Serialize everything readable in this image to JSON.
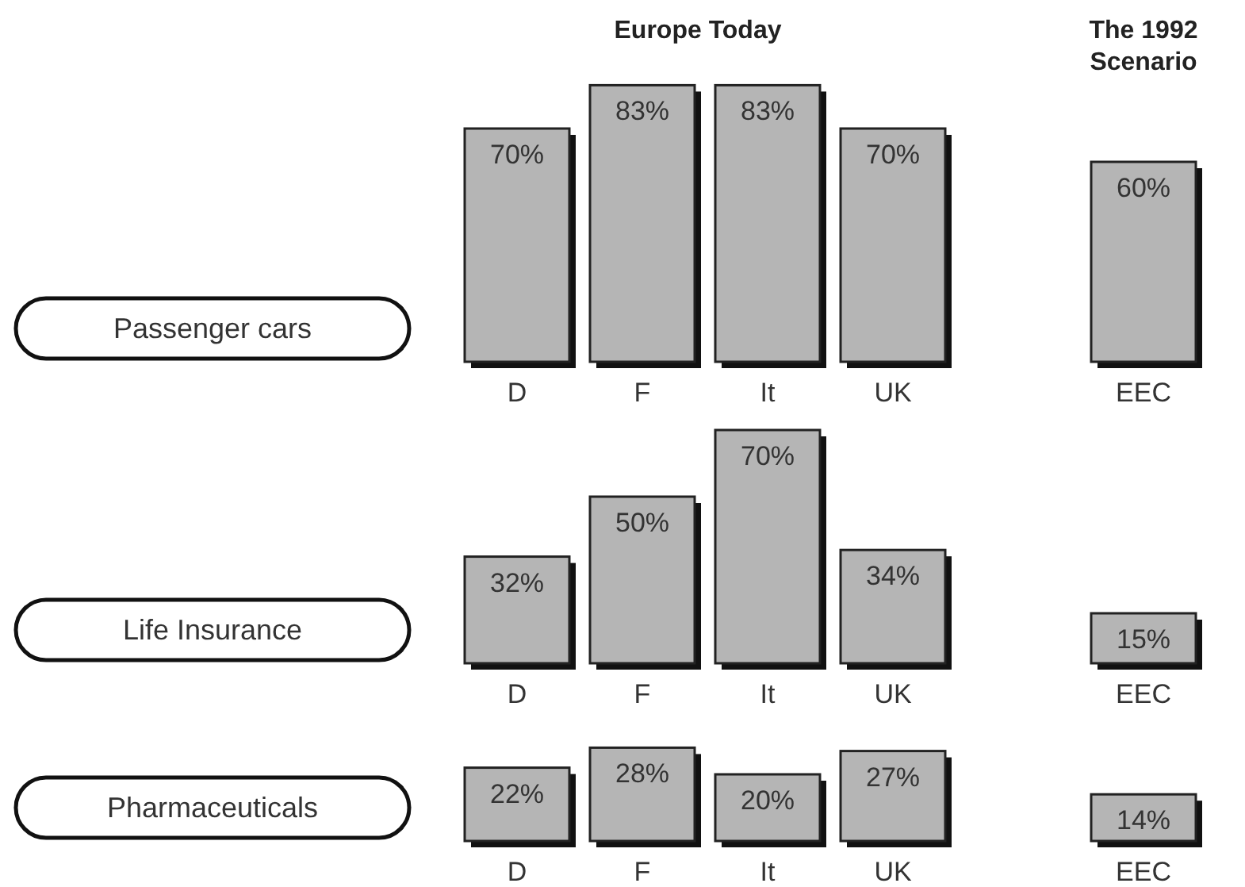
{
  "chart_data": [
    {
      "type": "bar",
      "title": "Passenger cars",
      "annotations": [
        "Europe Today",
        "The 1992 Scenario"
      ],
      "categories": [
        "D",
        "F",
        "It",
        "UK",
        null,
        "EEC"
      ],
      "values": [
        70,
        83,
        83,
        70,
        null,
        60
      ],
      "value_labels": [
        "70%",
        "83%",
        "83%",
        "70%",
        null,
        "60%"
      ],
      "color": "#b5b5b5"
    },
    {
      "type": "bar",
      "title": "Life Insurance",
      "categories": [
        "D",
        "F",
        "It",
        "UK",
        null,
        "EEC"
      ],
      "values": [
        32,
        50,
        70,
        34,
        null,
        15
      ],
      "value_labels": [
        "32%",
        "50%",
        "70%",
        "34%",
        null,
        "15%"
      ],
      "color": "#b5b5b5"
    },
    {
      "type": "bar",
      "title": "Pharmaceuticals",
      "categories": [
        "D",
        "F",
        "It",
        "UK",
        null,
        "EEC"
      ],
      "values": [
        22,
        28,
        20,
        27,
        null,
        14
      ],
      "value_labels": [
        "22%",
        "28%",
        "20%",
        "27%",
        null,
        "14%"
      ],
      "color": "#b5b5b5"
    }
  ]
}
